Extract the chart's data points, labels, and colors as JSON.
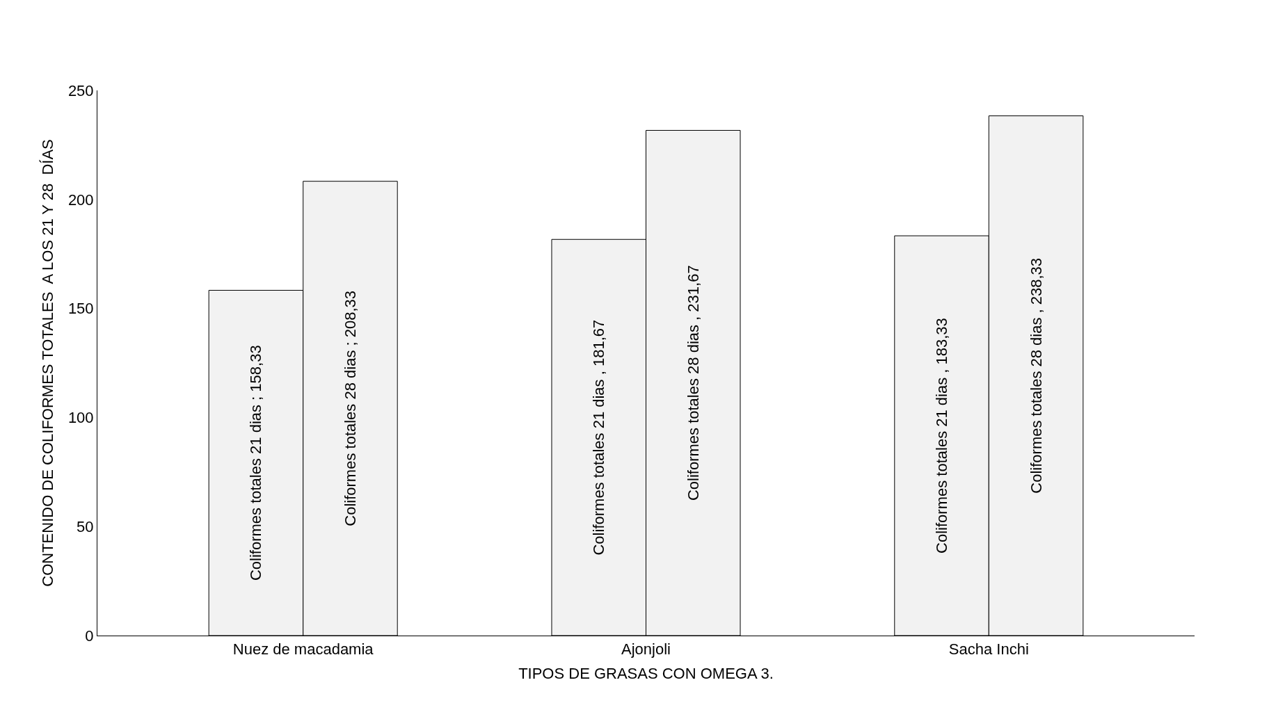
{
  "chart_data": {
    "type": "bar",
    "xlabel": "TIPOS DE GRASAS CON OMEGA 3.",
    "ylabel": "CONTENIDO DE COLIFORMES TOTALES  A LOS 21 Y 28  DÍAS",
    "categories": [
      "Nuez de macadamia",
      "Ajonjoli",
      "Sacha Inchi"
    ],
    "series": [
      {
        "color": "#f2f2f2",
        "values": [
          158.33,
          181.67,
          183.33
        ],
        "value_labels": [
          "Coliformes totales 21 dias ; 158,33",
          "Coliformes totales 21 dias , 181,67",
          "Coliformes totales 21 dias , 183,33"
        ]
      },
      {
        "color": "#f2f2f2",
        "values": [
          208.33,
          231.67,
          238.33
        ],
        "value_labels": [
          "Coliformes totales 28 dias ; 208,33",
          "Coliformes totales 28 dias , 231,67",
          "Coliformes totales 28 dias , 238,33"
        ]
      }
    ],
    "ylim": [
      0,
      250
    ],
    "yticks": [
      0,
      50,
      100,
      150,
      200,
      250
    ]
  }
}
